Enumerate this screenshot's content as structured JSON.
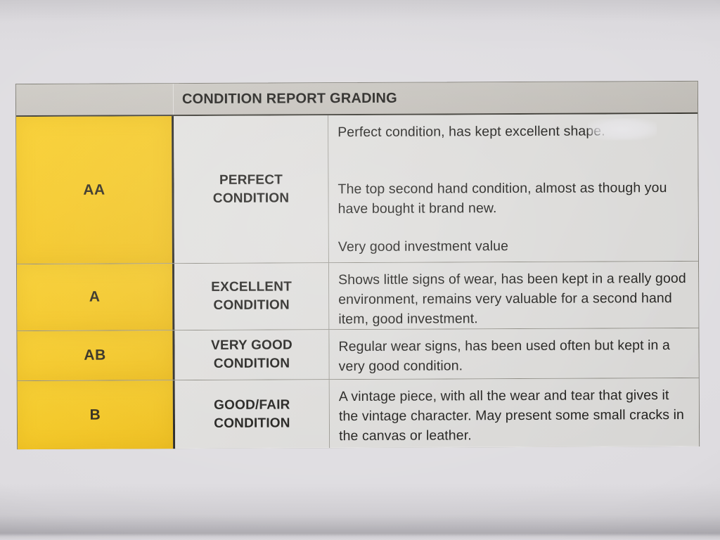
{
  "table": {
    "header_title": "CONDITION REPORT GRADING",
    "rows": [
      {
        "grade": "AA",
        "condition": "PERFECT\nCONDITION",
        "paragraphs": [
          "Perfect condition, has kept excellent shape.",
          "The top second hand condition, almost as though you have bought it brand new.",
          "Very good investment value"
        ]
      },
      {
        "grade": "A",
        "condition": "EXCELLENT\nCONDITION",
        "paragraphs": [
          "Shows little signs of wear, has been kept in a really good environment, remains very valuable for a second hand item, good investment."
        ]
      },
      {
        "grade": "AB",
        "condition": "VERY GOOD\nCONDITION",
        "paragraphs": [
          "Regular wear signs, has been used often but kept in a very good condition."
        ]
      },
      {
        "grade": "B",
        "condition": "GOOD/FAIR\nCONDITION",
        "paragraphs": [
          "A vintage piece, with all the wear and tear that gives it the vintage character. May present some small cracks in the canvas or leather."
        ]
      }
    ]
  },
  "colors": {
    "grade_cell": "#f6c71d",
    "header_bg": "#c6c2bc",
    "cell_bg": "#e3e2e0",
    "text": "#1b1a17"
  }
}
